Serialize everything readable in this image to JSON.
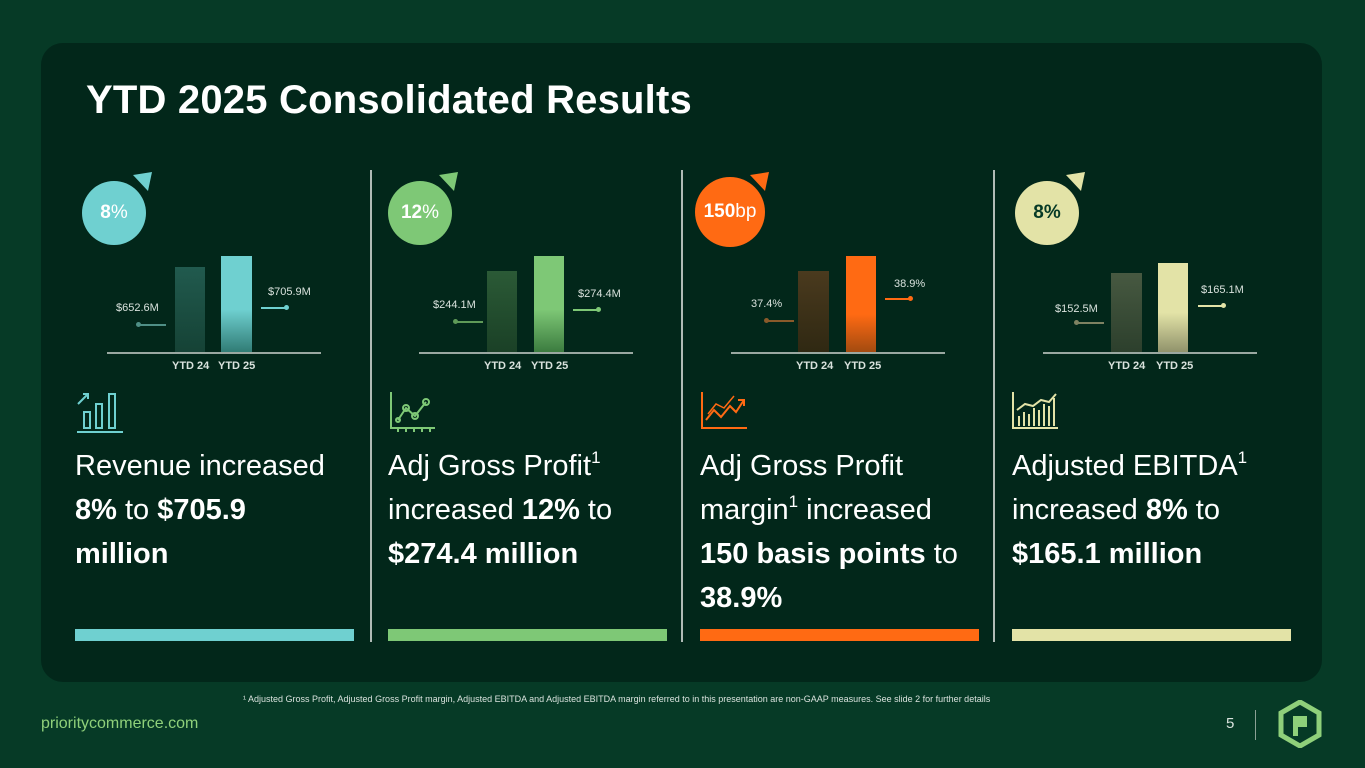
{
  "title": "YTD 2025 Consolidated Results",
  "colors": {
    "background": "#063a26",
    "panel": "#02271a",
    "revenue": "#6fd0d0",
    "gross_profit": "#7ec876",
    "margin": "#ff6a13",
    "ebitda": "#e3e3a7"
  },
  "metrics": [
    {
      "badge_value": "8",
      "badge_unit": "%",
      "prev_value": "$652.6M",
      "cur_value": "$705.9M",
      "x_labels": [
        "YTD 24",
        "YTD 25"
      ],
      "icon": "bar-chart-up-icon",
      "head_1": "Revenue increased",
      "head_2a": "8%",
      "head_2b": " to ",
      "head_2c": "$705.9",
      "head_3": "million"
    },
    {
      "badge_value": "12",
      "badge_unit": "%",
      "prev_value": "$244.1M",
      "cur_value": "$274.4M",
      "x_labels": [
        "YTD 24",
        "YTD 25"
      ],
      "icon": "line-chart-icon",
      "head_1": "Adj Gross Profit",
      "head_1_sup": "1",
      "head_2a": "increased ",
      "head_2b": "12%",
      "head_2c": " to",
      "head_3": "$274.4 million"
    },
    {
      "badge_value": "150",
      "badge_unit": "bp",
      "prev_value": "37.4%",
      "cur_value": "38.9%",
      "x_labels": [
        "YTD 24",
        "YTD 25"
      ],
      "icon": "trend-up-icon",
      "head_1": "Adj Gross Profit",
      "head_2a": "margin",
      "head_2_sup": "1",
      "head_2b": " increased",
      "head_3a": "150 basis points",
      "head_3b": " to",
      "head_4": "38.9%"
    },
    {
      "badge_value": "8%",
      "badge_unit": "",
      "prev_value": "$152.5M",
      "cur_value": "$165.1M",
      "x_labels": [
        "YTD 24",
        "YTD 25"
      ],
      "icon": "bar-chart-growth-icon",
      "head_1": "Adjusted EBITDA",
      "head_1_sup": "1",
      "head_2a": "increased ",
      "head_2b": "8%",
      "head_2c": " to",
      "head_3": "$165.1 million"
    }
  ],
  "footnote": "¹ Adjusted Gross Profit, Adjusted Gross Profit margin, Adjusted EBITDA and Adjusted EBITDA margin referred to in this presentation are non-GAAP measures. See slide 2 for further details",
  "footer": {
    "website": "prioritycommerce.com",
    "page_number": "5"
  }
}
